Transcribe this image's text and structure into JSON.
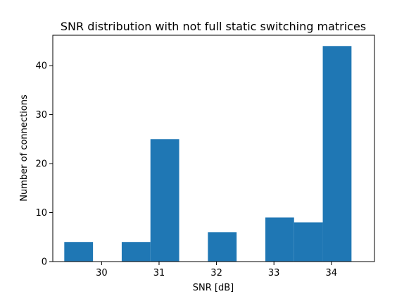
{
  "chart_data": {
    "type": "bar",
    "title": "SNR distribution with not full static switching matrices",
    "xlabel": "SNR [dB]",
    "ylabel": "Number of connections",
    "xlim": [
      29.15,
      34.75
    ],
    "ylim": [
      0,
      46.2
    ],
    "x_ticks": [
      30,
      31,
      32,
      33,
      34
    ],
    "y_ticks": [
      0,
      10,
      20,
      30,
      40
    ],
    "bins": [
      {
        "start": 29.35,
        "end": 29.85,
        "count": 4
      },
      {
        "start": 29.85,
        "end": 30.35,
        "count": 0
      },
      {
        "start": 30.35,
        "end": 30.85,
        "count": 4
      },
      {
        "start": 30.85,
        "end": 31.35,
        "count": 25
      },
      {
        "start": 31.35,
        "end": 31.85,
        "count": 0
      },
      {
        "start": 31.85,
        "end": 32.35,
        "count": 6
      },
      {
        "start": 32.35,
        "end": 32.85,
        "count": 0
      },
      {
        "start": 32.85,
        "end": 33.35,
        "count": 9
      },
      {
        "start": 33.35,
        "end": 33.85,
        "count": 8
      },
      {
        "start": 33.85,
        "end": 34.35,
        "count": 44
      }
    ],
    "bar_color": "#1f77b4",
    "grid": false,
    "legend": "none"
  }
}
